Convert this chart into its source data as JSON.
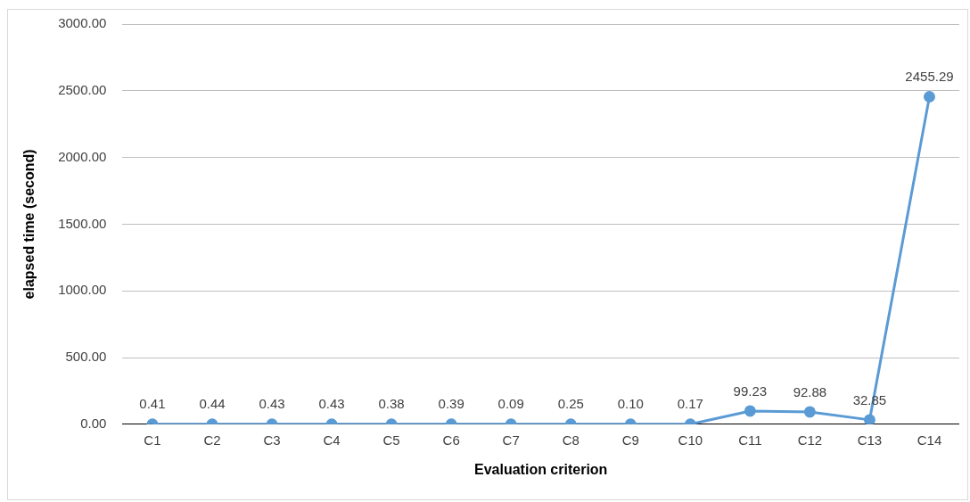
{
  "chart_data": {
    "type": "line",
    "xlabel": "Evaluation criterion",
    "ylabel": "elapsed time (second)",
    "categories": [
      "C1",
      "C2",
      "C3",
      "C4",
      "C5",
      "C6",
      "C7",
      "C8",
      "C9",
      "C10",
      "C11",
      "C12",
      "C13",
      "C14"
    ],
    "series": [
      {
        "color": "#5b9bd5",
        "values": [
          0.41,
          0.44,
          0.43,
          0.43,
          0.38,
          0.39,
          0.09,
          0.25,
          0.1,
          0.17,
          99.23,
          92.88,
          32.85,
          2455.29
        ],
        "value_labels": [
          "0.41",
          "0.44",
          "0.43",
          "0.43",
          "0.38",
          "0.39",
          "0.09",
          "0.25",
          "0.10",
          "0.17",
          "99.23",
          "92.88",
          "32.85",
          "2455.29"
        ]
      }
    ],
    "ylim": [
      0,
      3000
    ],
    "yticks": [
      {
        "value": 0,
        "label": "0.00"
      },
      {
        "value": 500,
        "label": "500.00"
      },
      {
        "value": 1000,
        "label": "1000.00"
      },
      {
        "value": 1500,
        "label": "1500.00"
      },
      {
        "value": 2000,
        "label": "2000.00"
      },
      {
        "value": 2500,
        "label": "2500.00"
      },
      {
        "value": 3000,
        "label": "3000.00"
      }
    ],
    "grid": "y",
    "legend": false,
    "marker": "circle",
    "line_style": "solid"
  }
}
